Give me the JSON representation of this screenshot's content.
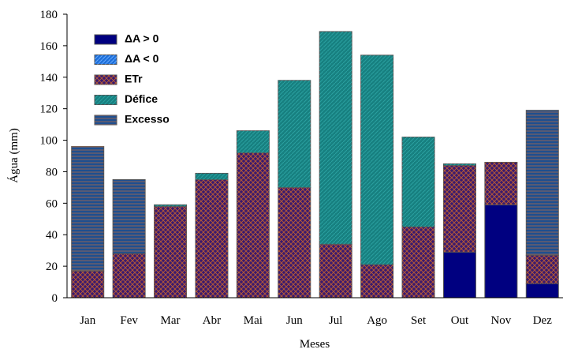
{
  "chart_data": {
    "type": "stacked-bar",
    "x_label": "Meses",
    "y_label": "Água (mm)",
    "categories": [
      "Jan",
      "Fev",
      "Mar",
      "Abr",
      "Mai",
      "Jun",
      "Jul",
      "Ago",
      "Set",
      "Out",
      "Nov",
      "Dez"
    ],
    "series": [
      {
        "name": "ΔA > 0",
        "color": "#000080",
        "values": [
          0,
          0,
          0,
          0,
          0,
          0,
          0,
          0,
          0,
          29,
          59,
          9
        ]
      },
      {
        "name": "ΔA < 0",
        "color": "#1e6fd9",
        "values": [
          0,
          0,
          0,
          0,
          0,
          0,
          0,
          0,
          0,
          0,
          0,
          0
        ]
      },
      {
        "name": "ETr",
        "color": "#3b1a6e",
        "values": [
          17,
          28,
          58,
          75,
          92,
          70,
          34,
          21,
          45,
          55,
          27,
          18
        ]
      },
      {
        "name": "Défice",
        "color": "#178080",
        "values": [
          0,
          0,
          1,
          4,
          14,
          68,
          135,
          133,
          57,
          1,
          0,
          0
        ]
      },
      {
        "name": "Excesso",
        "color": "#1f4f8f",
        "values": [
          79,
          47,
          0,
          0,
          0,
          0,
          0,
          0,
          0,
          0,
          0,
          92
        ]
      }
    ],
    "ylim": [
      0,
      180
    ],
    "yticks": [
      0,
      20,
      40,
      60,
      80,
      100,
      120,
      140,
      160,
      180
    ]
  }
}
